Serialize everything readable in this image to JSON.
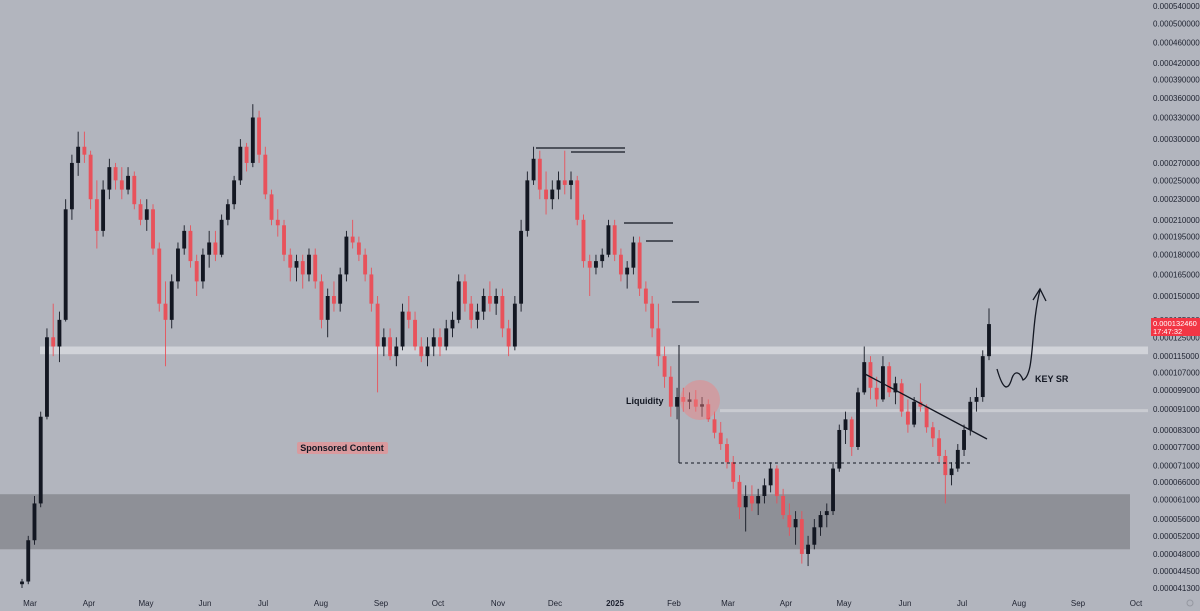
{
  "chart_data": {
    "type": "candlestick",
    "y_axis": {
      "position": "right",
      "tick_labels": [
        "0.000540000",
        "0.000500000",
        "0.000460000",
        "0.000420000",
        "0.000390000",
        "0.000360000",
        "0.000330000",
        "0.000300000",
        "0.000270000",
        "0.000250000",
        "0.000230000",
        "0.000210000",
        "0.000195000",
        "0.000180000",
        "0.000165000",
        "0.000150000",
        "0.000135000",
        "0.000125000",
        "0.000115000",
        "0.000107000",
        "0.000099000",
        "0.000091000",
        "0.000083000",
        "0.000077000",
        "0.000071000",
        "0.000066000",
        "0.000061000",
        "0.000056000",
        "0.000052000",
        "0.000048000",
        "0.000044500",
        "0.000041300"
      ]
    },
    "x_axis": {
      "tick_labels": [
        "Mar",
        "Apr",
        "May",
        "Jun",
        "Jul",
        "Aug",
        "Sep",
        "Oct",
        "Nov",
        "Dec",
        "2025",
        "Feb",
        "Mar",
        "Apr",
        "May",
        "Jun",
        "Jul",
        "Aug",
        "Sep",
        "Oct"
      ],
      "bold_labels": [
        "2025"
      ]
    },
    "current_price": {
      "value": "0.000132460",
      "countdown": "17:47:32",
      "color": "#f23645"
    },
    "colors": {
      "up": "#131722",
      "down": "#e8525b",
      "background": "#b2b5be",
      "zone": "#8e9097"
    },
    "ohlc": [
      {
        "o": 4.2e-05,
        "h": 4.3e-05,
        "l": 4.13e-05,
        "c": 4.25e-05
      },
      {
        "o": 4.25e-05,
        "h": 5.2e-05,
        "l": 4.2e-05,
        "c": 5.1e-05
      },
      {
        "o": 5.1e-05,
        "h": 6.2e-05,
        "l": 5e-05,
        "c": 6e-05
      },
      {
        "o": 6e-05,
        "h": 9e-05,
        "l": 5.9e-05,
        "c": 8.8e-05
      },
      {
        "o": 8.8e-05,
        "h": 0.00013,
        "l": 8.7e-05,
        "c": 0.000125
      },
      {
        "o": 0.000125,
        "h": 0.000145,
        "l": 0.000115,
        "c": 0.00012
      },
      {
        "o": 0.00012,
        "h": 0.00014,
        "l": 0.000112,
        "c": 0.000135
      },
      {
        "o": 0.000135,
        "h": 0.00023,
        "l": 0.000134,
        "c": 0.00022
      },
      {
        "o": 0.00022,
        "h": 0.00028,
        "l": 0.00021,
        "c": 0.00027
      },
      {
        "o": 0.00027,
        "h": 0.00031,
        "l": 0.000255,
        "c": 0.00029
      },
      {
        "o": 0.00029,
        "h": 0.00031,
        "l": 0.00027,
        "c": 0.00028
      },
      {
        "o": 0.00028,
        "h": 0.000285,
        "l": 0.00022,
        "c": 0.00023
      },
      {
        "o": 0.00023,
        "h": 0.00025,
        "l": 0.000185,
        "c": 0.0002
      },
      {
        "o": 0.0002,
        "h": 0.00025,
        "l": 0.000195,
        "c": 0.00024
      },
      {
        "o": 0.00024,
        "h": 0.000275,
        "l": 0.00023,
        "c": 0.000265
      },
      {
        "o": 0.000265,
        "h": 0.00027,
        "l": 0.00024,
        "c": 0.00025
      },
      {
        "o": 0.00025,
        "h": 0.000265,
        "l": 0.00023,
        "c": 0.00024
      },
      {
        "o": 0.00024,
        "h": 0.000265,
        "l": 0.000235,
        "c": 0.000255
      },
      {
        "o": 0.000255,
        "h": 0.00026,
        "l": 0.00022,
        "c": 0.000225
      },
      {
        "o": 0.000225,
        "h": 0.00023,
        "l": 0.000205,
        "c": 0.00021
      },
      {
        "o": 0.00021,
        "h": 0.00023,
        "l": 0.0002,
        "c": 0.00022
      },
      {
        "o": 0.00022,
        "h": 0.000225,
        "l": 0.00018,
        "c": 0.000185
      },
      {
        "o": 0.000185,
        "h": 0.00019,
        "l": 0.00014,
        "c": 0.000145
      },
      {
        "o": 0.000145,
        "h": 0.00016,
        "l": 0.00011,
        "c": 0.000135
      },
      {
        "o": 0.000135,
        "h": 0.000165,
        "l": 0.00013,
        "c": 0.00016
      },
      {
        "o": 0.00016,
        "h": 0.00019,
        "l": 0.000155,
        "c": 0.000185
      },
      {
        "o": 0.000185,
        "h": 0.000205,
        "l": 0.00018,
        "c": 0.0002
      },
      {
        "o": 0.0002,
        "h": 0.000205,
        "l": 0.00017,
        "c": 0.000175
      },
      {
        "o": 0.000175,
        "h": 0.00018,
        "l": 0.00015,
        "c": 0.00016
      },
      {
        "o": 0.00016,
        "h": 0.000185,
        "l": 0.000155,
        "c": 0.00018
      },
      {
        "o": 0.00018,
        "h": 0.0002,
        "l": 0.00017,
        "c": 0.00019
      },
      {
        "o": 0.00019,
        "h": 0.0002,
        "l": 0.000175,
        "c": 0.00018
      },
      {
        "o": 0.00018,
        "h": 0.000215,
        "l": 0.000178,
        "c": 0.00021
      },
      {
        "o": 0.00021,
        "h": 0.00023,
        "l": 0.000205,
        "c": 0.000225
      },
      {
        "o": 0.000225,
        "h": 0.000255,
        "l": 0.00022,
        "c": 0.00025
      },
      {
        "o": 0.00025,
        "h": 0.0003,
        "l": 0.000245,
        "c": 0.00029
      },
      {
        "o": 0.00029,
        "h": 0.000295,
        "l": 0.00026,
        "c": 0.00027
      },
      {
        "o": 0.00027,
        "h": 0.00035,
        "l": 0.000265,
        "c": 0.00033
      },
      {
        "o": 0.00033,
        "h": 0.00034,
        "l": 0.00027,
        "c": 0.00028
      },
      {
        "o": 0.00028,
        "h": 0.00029,
        "l": 0.00023,
        "c": 0.000235
      },
      {
        "o": 0.000235,
        "h": 0.00024,
        "l": 0.000205,
        "c": 0.00021
      },
      {
        "o": 0.00021,
        "h": 0.00022,
        "l": 0.000195,
        "c": 0.000205
      },
      {
        "o": 0.000205,
        "h": 0.00021,
        "l": 0.000175,
        "c": 0.00018
      },
      {
        "o": 0.00018,
        "h": 0.000185,
        "l": 0.00016,
        "c": 0.00017
      },
      {
        "o": 0.00017,
        "h": 0.00018,
        "l": 0.00016,
        "c": 0.000175
      },
      {
        "o": 0.000175,
        "h": 0.00018,
        "l": 0.000155,
        "c": 0.000165
      },
      {
        "o": 0.000165,
        "h": 0.000185,
        "l": 0.00016,
        "c": 0.00018
      },
      {
        "o": 0.00018,
        "h": 0.000185,
        "l": 0.000155,
        "c": 0.00016
      },
      {
        "o": 0.00016,
        "h": 0.000165,
        "l": 0.00013,
        "c": 0.000135
      },
      {
        "o": 0.000135,
        "h": 0.000155,
        "l": 0.000125,
        "c": 0.00015
      },
      {
        "o": 0.00015,
        "h": 0.00016,
        "l": 0.00014,
        "c": 0.000145
      },
      {
        "o": 0.000145,
        "h": 0.00017,
        "l": 0.00014,
        "c": 0.000165
      },
      {
        "o": 0.000165,
        "h": 0.0002,
        "l": 0.00016,
        "c": 0.000195
      },
      {
        "o": 0.000195,
        "h": 0.00021,
        "l": 0.000185,
        "c": 0.00019
      },
      {
        "o": 0.00019,
        "h": 0.000195,
        "l": 0.000175,
        "c": 0.00018
      },
      {
        "o": 0.00018,
        "h": 0.000185,
        "l": 0.00016,
        "c": 0.000165
      },
      {
        "o": 0.000165,
        "h": 0.00017,
        "l": 0.00014,
        "c": 0.000145
      },
      {
        "o": 0.000145,
        "h": 0.00015,
        "l": 9.8e-05,
        "c": 0.00012
      },
      {
        "o": 0.00012,
        "h": 0.00013,
        "l": 0.000115,
        "c": 0.000125
      },
      {
        "o": 0.000125,
        "h": 0.00013,
        "l": 0.000113,
        "c": 0.000115
      },
      {
        "o": 0.000115,
        "h": 0.000125,
        "l": 0.00011,
        "c": 0.00012
      },
      {
        "o": 0.00012,
        "h": 0.000145,
        "l": 0.000118,
        "c": 0.00014
      },
      {
        "o": 0.00014,
        "h": 0.00015,
        "l": 0.00013,
        "c": 0.000135
      },
      {
        "o": 0.000135,
        "h": 0.00014,
        "l": 0.000118,
        "c": 0.00012
      },
      {
        "o": 0.00012,
        "h": 0.000125,
        "l": 0.000112,
        "c": 0.000115
      },
      {
        "o": 0.000115,
        "h": 0.000125,
        "l": 0.00011,
        "c": 0.00012
      },
      {
        "o": 0.00012,
        "h": 0.00013,
        "l": 0.000115,
        "c": 0.000125
      },
      {
        "o": 0.000125,
        "h": 0.00013,
        "l": 0.000115,
        "c": 0.00012
      },
      {
        "o": 0.00012,
        "h": 0.000135,
        "l": 0.000118,
        "c": 0.00013
      },
      {
        "o": 0.00013,
        "h": 0.00014,
        "l": 0.000125,
        "c": 0.000135
      },
      {
        "o": 0.000135,
        "h": 0.000165,
        "l": 0.000133,
        "c": 0.00016
      },
      {
        "o": 0.00016,
        "h": 0.000165,
        "l": 0.00014,
        "c": 0.000145
      },
      {
        "o": 0.000145,
        "h": 0.00015,
        "l": 0.00013,
        "c": 0.000135
      },
      {
        "o": 0.000135,
        "h": 0.000145,
        "l": 0.00013,
        "c": 0.00014
      },
      {
        "o": 0.00014,
        "h": 0.000155,
        "l": 0.000135,
        "c": 0.00015
      },
      {
        "o": 0.00015,
        "h": 0.00016,
        "l": 0.00014,
        "c": 0.000145
      },
      {
        "o": 0.000145,
        "h": 0.000155,
        "l": 0.000138,
        "c": 0.00015
      },
      {
        "o": 0.00015,
        "h": 0.000155,
        "l": 0.000125,
        "c": 0.00013
      },
      {
        "o": 0.00013,
        "h": 0.000135,
        "l": 0.000115,
        "c": 0.00012
      },
      {
        "o": 0.00012,
        "h": 0.00015,
        "l": 0.000118,
        "c": 0.000145
      },
      {
        "o": 0.000145,
        "h": 0.00021,
        "l": 0.00014,
        "c": 0.0002
      },
      {
        "o": 0.0002,
        "h": 0.00026,
        "l": 0.000195,
        "c": 0.00025
      },
      {
        "o": 0.00025,
        "h": 0.00029,
        "l": 0.000245,
        "c": 0.000275
      },
      {
        "o": 0.000275,
        "h": 0.000285,
        "l": 0.00023,
        "c": 0.00024
      },
      {
        "o": 0.00024,
        "h": 0.00026,
        "l": 0.000215,
        "c": 0.00023
      },
      {
        "o": 0.00023,
        "h": 0.00025,
        "l": 0.00022,
        "c": 0.00024
      },
      {
        "o": 0.00024,
        "h": 0.00026,
        "l": 0.00023,
        "c": 0.00025
      },
      {
        "o": 0.00025,
        "h": 0.000285,
        "l": 0.000235,
        "c": 0.000245
      },
      {
        "o": 0.000245,
        "h": 0.00026,
        "l": 0.00023,
        "c": 0.00025
      },
      {
        "o": 0.00025,
        "h": 0.000255,
        "l": 0.000205,
        "c": 0.00021
      },
      {
        "o": 0.00021,
        "h": 0.000215,
        "l": 0.00017,
        "c": 0.000175
      },
      {
        "o": 0.000175,
        "h": 0.00018,
        "l": 0.00015,
        "c": 0.00017
      },
      {
        "o": 0.00017,
        "h": 0.00018,
        "l": 0.000165,
        "c": 0.000175
      },
      {
        "o": 0.000175,
        "h": 0.000185,
        "l": 0.00017,
        "c": 0.00018
      },
      {
        "o": 0.00018,
        "h": 0.00021,
        "l": 0.000178,
        "c": 0.000205
      },
      {
        "o": 0.000205,
        "h": 0.00021,
        "l": 0.000175,
        "c": 0.00018
      },
      {
        "o": 0.00018,
        "h": 0.000185,
        "l": 0.00016,
        "c": 0.000165
      },
      {
        "o": 0.000165,
        "h": 0.000175,
        "l": 0.000155,
        "c": 0.00017
      },
      {
        "o": 0.00017,
        "h": 0.000195,
        "l": 0.000165,
        "c": 0.00019
      },
      {
        "o": 0.00019,
        "h": 0.000195,
        "l": 0.00015,
        "c": 0.000155
      },
      {
        "o": 0.000155,
        "h": 0.00016,
        "l": 0.00014,
        "c": 0.000145
      },
      {
        "o": 0.000145,
        "h": 0.00015,
        "l": 0.000125,
        "c": 0.00013
      },
      {
        "o": 0.00013,
        "h": 0.000145,
        "l": 0.00011,
        "c": 0.000115
      },
      {
        "o": 0.000115,
        "h": 0.00012,
        "l": 0.0001,
        "c": 0.000105
      },
      {
        "o": 0.000105,
        "h": 0.00011,
        "l": 8.8e-05,
        "c": 9.2e-05
      },
      {
        "o": 9.2e-05,
        "h": 0.0001,
        "l": 8.7e-05,
        "c": 9.6e-05
      },
      {
        "o": 9.6e-05,
        "h": 0.0001,
        "l": 9e-05,
        "c": 9.4e-05
      },
      {
        "o": 9.4e-05,
        "h": 9.8e-05,
        "l": 9.1e-05,
        "c": 9.5e-05
      },
      {
        "o": 9.5e-05,
        "h": 9.9e-05,
        "l": 9e-05,
        "c": 9.2e-05
      },
      {
        "o": 9.2e-05,
        "h": 9.6e-05,
        "l": 8.8e-05,
        "c": 9.3e-05
      },
      {
        "o": 9.3e-05,
        "h": 9.5e-05,
        "l": 8.6e-05,
        "c": 8.7e-05
      },
      {
        "o": 8.7e-05,
        "h": 9e-05,
        "l": 8e-05,
        "c": 8.2e-05
      },
      {
        "o": 8.2e-05,
        "h": 8.6e-05,
        "l": 7.6e-05,
        "c": 7.8e-05
      },
      {
        "o": 7.8e-05,
        "h": 8e-05,
        "l": 7e-05,
        "c": 7.2e-05
      },
      {
        "o": 7.2e-05,
        "h": 7.4e-05,
        "l": 6.4e-05,
        "c": 6.6e-05
      },
      {
        "o": 6.6e-05,
        "h": 6.8e-05,
        "l": 5.6e-05,
        "c": 5.9e-05
      },
      {
        "o": 5.9e-05,
        "h": 6.5e-05,
        "l": 5.3e-05,
        "c": 6.2e-05
      },
      {
        "o": 6.2e-05,
        "h": 6.5e-05,
        "l": 5.8e-05,
        "c": 6e-05
      },
      {
        "o": 6e-05,
        "h": 6.4e-05,
        "l": 5.7e-05,
        "c": 6.2e-05
      },
      {
        "o": 6.2e-05,
        "h": 6.7e-05,
        "l": 6e-05,
        "c": 6.5e-05
      },
      {
        "o": 6.5e-05,
        "h": 7.2e-05,
        "l": 6.3e-05,
        "c": 7e-05
      },
      {
        "o": 7e-05,
        "h": 7.1e-05,
        "l": 6e-05,
        "c": 6.2e-05
      },
      {
        "o": 6.2e-05,
        "h": 6.4e-05,
        "l": 5.6e-05,
        "c": 5.7e-05
      },
      {
        "o": 5.7e-05,
        "h": 6e-05,
        "l": 5.2e-05,
        "c": 5.4e-05
      },
      {
        "o": 5.4e-05,
        "h": 5.8e-05,
        "l": 5e-05,
        "c": 5.6e-05
      },
      {
        "o": 5.6e-05,
        "h": 5.8e-05,
        "l": 4.6e-05,
        "c": 4.8e-05
      },
      {
        "o": 4.8e-05,
        "h": 5.2e-05,
        "l": 4.55e-05,
        "c": 5e-05
      },
      {
        "o": 5e-05,
        "h": 5.6e-05,
        "l": 4.9e-05,
        "c": 5.4e-05
      },
      {
        "o": 5.4e-05,
        "h": 5.8e-05,
        "l": 5.2e-05,
        "c": 5.7e-05
      },
      {
        "o": 5.7e-05,
        "h": 6e-05,
        "l": 5.4e-05,
        "c": 5.8e-05
      },
      {
        "o": 5.8e-05,
        "h": 7.2e-05,
        "l": 5.7e-05,
        "c": 7e-05
      },
      {
        "o": 7e-05,
        "h": 8.5e-05,
        "l": 6.9e-05,
        "c": 8.3e-05
      },
      {
        "o": 8.3e-05,
        "h": 9e-05,
        "l": 7.8e-05,
        "c": 8.7e-05
      },
      {
        "o": 8.7e-05,
        "h": 8.8e-05,
        "l": 7.4e-05,
        "c": 7.7e-05
      },
      {
        "o": 7.7e-05,
        "h": 0.0001,
        "l": 7.6e-05,
        "c": 9.8e-05
      },
      {
        "o": 9.8e-05,
        "h": 0.00012,
        "l": 9.7e-05,
        "c": 0.000112
      },
      {
        "o": 0.000112,
        "h": 0.000115,
        "l": 9.5e-05,
        "c": 0.0001
      },
      {
        "o": 0.0001,
        "h": 0.000105,
        "l": 9.2e-05,
        "c": 9.5e-05
      },
      {
        "o": 9.5e-05,
        "h": 0.000115,
        "l": 9.4e-05,
        "c": 0.00011
      },
      {
        "o": 0.00011,
        "h": 0.000112,
        "l": 9.6e-05,
        "c": 9.8e-05
      },
      {
        "o": 9.8e-05,
        "h": 0.000105,
        "l": 9.3e-05,
        "c": 0.000102
      },
      {
        "o": 0.000102,
        "h": 0.000104,
        "l": 8.8e-05,
        "c": 9e-05
      },
      {
        "o": 9e-05,
        "h": 9.5e-05,
        "l": 8.2e-05,
        "c": 8.5e-05
      },
      {
        "o": 8.5e-05,
        "h": 9.6e-05,
        "l": 8.4e-05,
        "c": 9.4e-05
      },
      {
        "o": 9.4e-05,
        "h": 0.000102,
        "l": 9e-05,
        "c": 9.2e-05
      },
      {
        "o": 9.2e-05,
        "h": 9.3e-05,
        "l": 8.2e-05,
        "c": 8.4e-05
      },
      {
        "o": 8.4e-05,
        "h": 8.6e-05,
        "l": 7.7e-05,
        "c": 8e-05
      },
      {
        "o": 8e-05,
        "h": 8.3e-05,
        "l": 7.2e-05,
        "c": 7.4e-05
      },
      {
        "o": 7.4e-05,
        "h": 7.6e-05,
        "l": 6e-05,
        "c": 6.8e-05
      },
      {
        "o": 6.8e-05,
        "h": 7.2e-05,
        "l": 6.5e-05,
        "c": 7e-05
      },
      {
        "o": 7e-05,
        "h": 7.8e-05,
        "l": 6.9e-05,
        "c": 7.6e-05
      },
      {
        "o": 7.6e-05,
        "h": 8.5e-05,
        "l": 7.4e-05,
        "c": 8.3e-05
      },
      {
        "o": 8.3e-05,
        "h": 9.6e-05,
        "l": 8.1e-05,
        "c": 9.4e-05
      },
      {
        "o": 9.4e-05,
        "h": 0.0001,
        "l": 9e-05,
        "c": 9.6e-05
      },
      {
        "o": 9.6e-05,
        "h": 0.000118,
        "l": 9.4e-05,
        "c": 0.000115
      },
      {
        "o": 0.000115,
        "h": 0.000142,
        "l": 0.000113,
        "c": 0.0001325
      }
    ],
    "zones": [
      {
        "name": "demand-zone",
        "from": 4.9e-05,
        "to": 6.25e-05
      },
      {
        "name": "key-sr-band",
        "from": 0.000116,
        "to": 0.00012
      },
      {
        "name": "mid-band",
        "from": 9e-05,
        "to": 9.1e-05
      }
    ],
    "annotations": {
      "liquidity": "Liquidity",
      "key_sr": "KEY SR",
      "sponsored": "Sponsored Content"
    }
  }
}
